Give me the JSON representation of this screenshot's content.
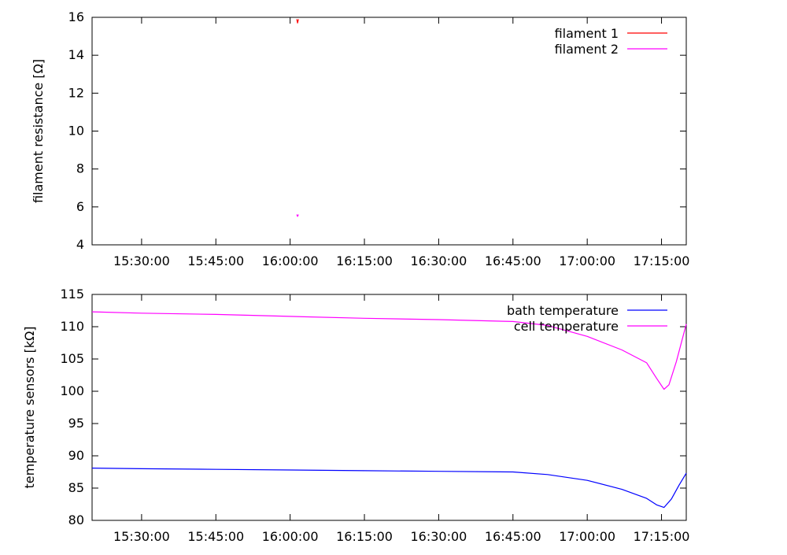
{
  "chart_data": [
    {
      "type": "line",
      "ylabel": "filament resistance [Ω]",
      "xlabel": "",
      "xlim": [
        "15:20:00",
        "17:20:00"
      ],
      "ylim": [
        4,
        16
      ],
      "x_ticks": [
        "15:30:00",
        "15:45:00",
        "16:00:00",
        "16:15:00",
        "16:30:00",
        "16:45:00",
        "17:00:00",
        "17:15:00"
      ],
      "y_ticks": [
        "4",
        "6",
        "8",
        "10",
        "12",
        "14",
        "16"
      ],
      "legend_position": "top-right",
      "grid": false,
      "series": [
        {
          "name": "filament 1",
          "color": "#ff0000",
          "points": [
            [
              "16:01:20",
              15.9
            ],
            [
              "16:01:30",
              15.7
            ],
            [
              "16:01:40",
              15.9
            ]
          ]
        },
        {
          "name": "filament 2",
          "color": "#ff00ff",
          "points": [
            [
              "16:01:20",
              5.6
            ],
            [
              "16:01:30",
              5.5
            ],
            [
              "16:01:40",
              5.6
            ]
          ]
        }
      ]
    },
    {
      "type": "line",
      "ylabel": "temperature sensors [kΩ]",
      "xlabel": "",
      "xlim": [
        "15:20:00",
        "17:20:00"
      ],
      "ylim": [
        80,
        115
      ],
      "x_ticks": [
        "15:30:00",
        "15:45:00",
        "16:00:00",
        "16:15:00",
        "16:30:00",
        "16:45:00",
        "17:00:00",
        "17:15:00"
      ],
      "y_ticks": [
        "80",
        "85",
        "90",
        "95",
        "100",
        "105",
        "110",
        "115"
      ],
      "legend_position": "top-right",
      "grid": false,
      "series": [
        {
          "name": "bath temperature",
          "color": "#0000ff",
          "points": [
            [
              "15:20:00",
              88.1
            ],
            [
              "15:30:00",
              88.0
            ],
            [
              "15:45:00",
              87.9
            ],
            [
              "16:00:00",
              87.8
            ],
            [
              "16:15:00",
              87.7
            ],
            [
              "16:30:00",
              87.6
            ],
            [
              "16:45:00",
              87.5
            ],
            [
              "16:52:00",
              87.1
            ],
            [
              "17:00:00",
              86.2
            ],
            [
              "17:07:00",
              84.8
            ],
            [
              "17:12:00",
              83.4
            ],
            [
              "17:14:00",
              82.4
            ],
            [
              "17:15:30",
              82.0
            ],
            [
              "17:17:00",
              83.3
            ],
            [
              "17:18:30",
              85.4
            ],
            [
              "17:20:00",
              87.3
            ]
          ]
        },
        {
          "name": "cell temperature",
          "color": "#ff00ff",
          "points": [
            [
              "15:20:00",
              112.3
            ],
            [
              "15:30:00",
              112.1
            ],
            [
              "15:45:00",
              111.9
            ],
            [
              "16:00:00",
              111.6
            ],
            [
              "16:15:00",
              111.3
            ],
            [
              "16:30:00",
              111.1
            ],
            [
              "16:45:00",
              110.8
            ],
            [
              "16:52:00",
              110.2
            ],
            [
              "17:00:00",
              108.5
            ],
            [
              "17:07:00",
              106.4
            ],
            [
              "17:12:00",
              104.4
            ],
            [
              "17:14:00",
              102.0
            ],
            [
              "17:15:30",
              100.3
            ],
            [
              "17:16:30",
              101.0
            ],
            [
              "17:18:00",
              104.6
            ],
            [
              "17:20:00",
              110.4
            ]
          ]
        }
      ]
    }
  ]
}
